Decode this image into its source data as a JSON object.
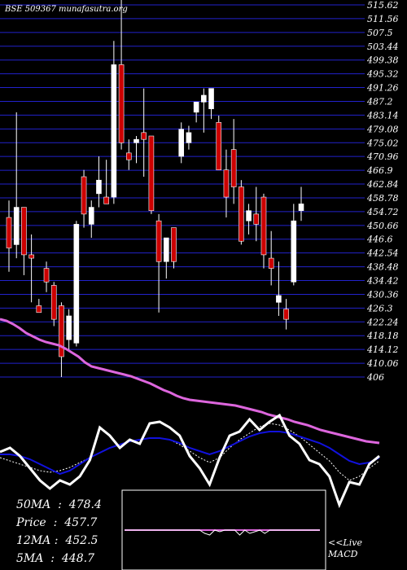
{
  "watermark": "BSE 509367 munafasutra.org",
  "colors": {
    "background": "#000000",
    "grid": "#2222cc",
    "up_candle": "#ffffff",
    "down_candle": "#cc0000",
    "long_ma": "#dd66dd",
    "price_line": "#ffffff",
    "ma_blue": "#1111dd",
    "ma_dashed": "#ffffff",
    "macd_box": "#ffffff",
    "macd_line": "#dd66dd"
  },
  "chart_data": [
    {
      "type": "candlestick",
      "title": "",
      "y_ticks": [
        "515.62",
        "511.56",
        "507.5",
        "503.44",
        "499.38",
        "495.32",
        "491.26",
        "487.2",
        "483.14",
        "479.08",
        "475.02",
        "470.96",
        "466.9",
        "462.84",
        "458.78",
        "454.72",
        "450.66",
        "446.6",
        "442.54",
        "438.48",
        "434.42",
        "430.36",
        "426.3",
        "422.24",
        "418.18",
        "414.12",
        "410.06",
        "406"
      ],
      "ylim": [
        406,
        515.62
      ],
      "candles": [
        {
          "o": 453,
          "h": 458,
          "l": 437,
          "c": 444
        },
        {
          "o": 445,
          "h": 484,
          "l": 441,
          "c": 456
        },
        {
          "o": 456,
          "h": 456,
          "l": 436,
          "c": 442
        },
        {
          "o": 442,
          "h": 448,
          "l": 428,
          "c": 441
        },
        {
          "o": 427,
          "h": 429,
          "l": 425,
          "c": 425
        },
        {
          "o": 438,
          "h": 440,
          "l": 431,
          "c": 434
        },
        {
          "o": 433,
          "h": 434,
          "l": 421,
          "c": 423
        },
        {
          "o": 427,
          "h": 428,
          "l": 406,
          "c": 412
        },
        {
          "o": 417,
          "h": 426,
          "l": 414,
          "c": 424
        },
        {
          "o": 416,
          "h": 452,
          "l": 415,
          "c": 451
        },
        {
          "o": 465,
          "h": 467,
          "l": 450,
          "c": 454
        },
        {
          "o": 451,
          "h": 458,
          "l": 447,
          "c": 456
        },
        {
          "o": 460,
          "h": 471,
          "l": 456,
          "c": 464
        },
        {
          "o": 459,
          "h": 470,
          "l": 457,
          "c": 457
        },
        {
          "o": 459,
          "h": 505,
          "l": 457,
          "c": 498
        },
        {
          "o": 498,
          "h": 518,
          "l": 473,
          "c": 475
        },
        {
          "o": 472,
          "h": 476,
          "l": 467,
          "c": 470
        },
        {
          "o": 475,
          "h": 477,
          "l": 469,
          "c": 476
        },
        {
          "o": 478,
          "h": 491,
          "l": 465,
          "c": 476
        },
        {
          "o": 477,
          "h": 477,
          "l": 454,
          "c": 455
        },
        {
          "o": 452,
          "h": 454,
          "l": 425,
          "c": 440
        },
        {
          "o": 440,
          "h": 446,
          "l": 435,
          "c": 447
        },
        {
          "o": 450,
          "h": 450,
          "l": 438,
          "c": 440
        },
        {
          "o": 471,
          "h": 481,
          "l": 469,
          "c": 479
        },
        {
          "o": 475,
          "h": 480,
          "l": 473,
          "c": 478
        },
        {
          "o": 484,
          "h": 486,
          "l": 481,
          "c": 487
        },
        {
          "o": 487,
          "h": 491,
          "l": 478,
          "c": 489
        },
        {
          "o": 485,
          "h": 490,
          "l": 482,
          "c": 491
        },
        {
          "o": 481,
          "h": 483,
          "l": 467,
          "c": 467
        },
        {
          "o": 467,
          "h": 473,
          "l": 453,
          "c": 459
        },
        {
          "o": 473,
          "h": 482,
          "l": 457,
          "c": 462
        },
        {
          "o": 462,
          "h": 464,
          "l": 445,
          "c": 446
        },
        {
          "o": 452,
          "h": 457,
          "l": 448,
          "c": 455
        },
        {
          "o": 454,
          "h": 462,
          "l": 446,
          "c": 451
        },
        {
          "o": 459,
          "h": 460,
          "l": 438,
          "c": 442
        },
        {
          "o": 441,
          "h": 449,
          "l": 433,
          "c": 438
        },
        {
          "o": 428,
          "h": 440,
          "l": 424,
          "c": 430
        },
        {
          "o": 426,
          "h": 429,
          "l": 420,
          "c": 423
        },
        {
          "o": 434,
          "h": 457,
          "l": 433,
          "c": 452
        },
        {
          "o": 455,
          "h": 462,
          "l": 452,
          "c": 457
        }
      ]
    },
    {
      "type": "line",
      "title": "",
      "series": [
        {
          "name": "",
          "values": [
            110,
            112,
            116,
            121,
            127,
            131,
            135,
            138,
            140,
            142,
            146,
            151,
            156,
            163,
            168,
            170,
            172,
            174,
            176,
            178,
            180,
            183,
            186,
            189,
            193,
            197,
            200,
            204,
            207,
            209,
            210,
            211,
            212,
            213,
            214,
            215,
            216,
            218,
            220,
            222,
            224,
            227,
            229,
            231,
            233,
            236,
            238,
            240,
            243,
            246,
            248,
            250,
            252,
            254,
            256,
            258,
            260,
            261,
            262
          ]
        }
      ]
    },
    {
      "type": "line",
      "title": "",
      "series": [
        {
          "name": "",
          "values": [
            25,
            30,
            20,
            5,
            -10,
            -20,
            -10,
            -15,
            -5,
            15,
            55,
            45,
            30,
            40,
            35,
            60,
            62,
            55,
            45,
            20,
            5,
            -15,
            18,
            45,
            50,
            65,
            52,
            62,
            70,
            45,
            35,
            15,
            10,
            -5,
            -40,
            -12,
            -15,
            10,
            20
          ]
        },
        {
          "name": "",
          "values": [
            22,
            22,
            20,
            16,
            10,
            4,
            -2,
            2,
            10,
            18,
            24,
            30,
            34,
            38,
            40,
            42,
            42,
            40,
            36,
            30,
            26,
            22,
            26,
            32,
            38,
            44,
            48,
            50,
            50,
            48,
            44,
            40,
            36,
            30,
            22,
            14,
            10,
            12,
            18
          ]
        },
        {
          "name": "",
          "values": [
            18,
            14,
            10,
            6,
            2,
            0,
            2,
            6,
            12,
            18,
            24,
            30,
            34,
            38,
            40,
            42,
            42,
            40,
            34,
            26,
            18,
            12,
            18,
            30,
            40,
            48,
            56,
            60,
            58,
            52,
            44,
            34,
            24,
            14,
            0,
            -10,
            -5,
            5,
            14
          ]
        }
      ]
    },
    {
      "type": "line",
      "title": "MACD",
      "series": [
        {
          "name": "",
          "values": [
            0,
            0,
            0,
            0,
            0,
            0,
            0,
            0,
            0,
            0,
            0,
            0,
            0,
            0,
            0,
            0,
            0,
            0,
            0,
            0,
            0,
            0,
            0,
            0,
            0,
            0,
            0,
            0,
            0,
            0,
            0,
            0,
            0,
            0,
            0,
            0,
            0,
            0,
            0,
            0
          ]
        },
        {
          "name": "",
          "values": [
            0,
            0,
            0,
            0,
            0,
            0,
            0,
            0,
            0,
            0,
            0,
            0,
            0,
            0,
            0,
            0,
            -2,
            -3,
            0,
            -1,
            0,
            0,
            0,
            -3,
            0,
            -2,
            -1,
            0,
            -2,
            0,
            0,
            0,
            0,
            0,
            0,
            0,
            0,
            0,
            0,
            0
          ]
        }
      ]
    }
  ],
  "stats": [
    {
      "label": "50MA",
      "value": "478.4"
    },
    {
      "label": "Price",
      "value": "457.7"
    },
    {
      "label": "12MA",
      "value": "452.5"
    },
    {
      "label": "5MA",
      "value": "448.7"
    }
  ],
  "macd_link": {
    "line1": "<<Live",
    "line2": "MACD"
  }
}
